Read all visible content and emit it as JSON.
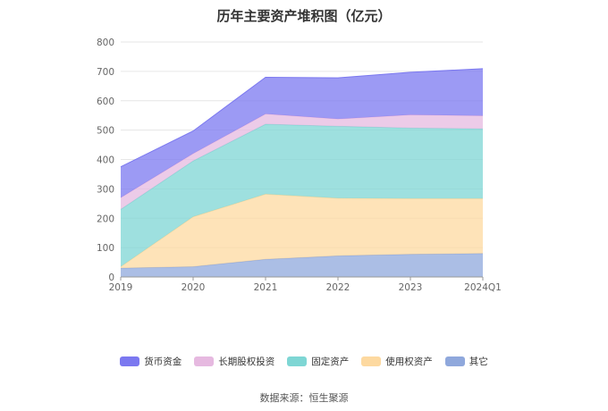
{
  "title": "历年主要资产堆积图（亿元）",
  "source": "数据来源：恒生聚源",
  "chart_data": {
    "type": "area",
    "stacked": true,
    "categories": [
      "2019",
      "2020",
      "2021",
      "2022",
      "2023",
      "2024Q1"
    ],
    "y_ticks": [
      0,
      100,
      200,
      300,
      400,
      500,
      600,
      700,
      800
    ],
    "ylim": [
      0,
      800
    ],
    "grid": true,
    "legend_position": "bottom",
    "series": [
      {
        "name": "其它",
        "color": "#8fa8dc",
        "values": [
          30,
          35,
          60,
          72,
          77,
          80
        ]
      },
      {
        "name": "使用权资产",
        "color": "#fdd9a0",
        "values": [
          5,
          170,
          222,
          196,
          190,
          187
        ]
      },
      {
        "name": "固定资产",
        "color": "#7ed6d4",
        "values": [
          195,
          190,
          238,
          245,
          240,
          237
        ]
      },
      {
        "name": "长期股权投资",
        "color": "#e6b9e0",
        "values": [
          40,
          25,
          35,
          25,
          45,
          45
        ]
      },
      {
        "name": "货币资金",
        "color": "#7b78f0",
        "values": [
          105,
          77,
          125,
          140,
          145,
          160
        ]
      }
    ]
  }
}
